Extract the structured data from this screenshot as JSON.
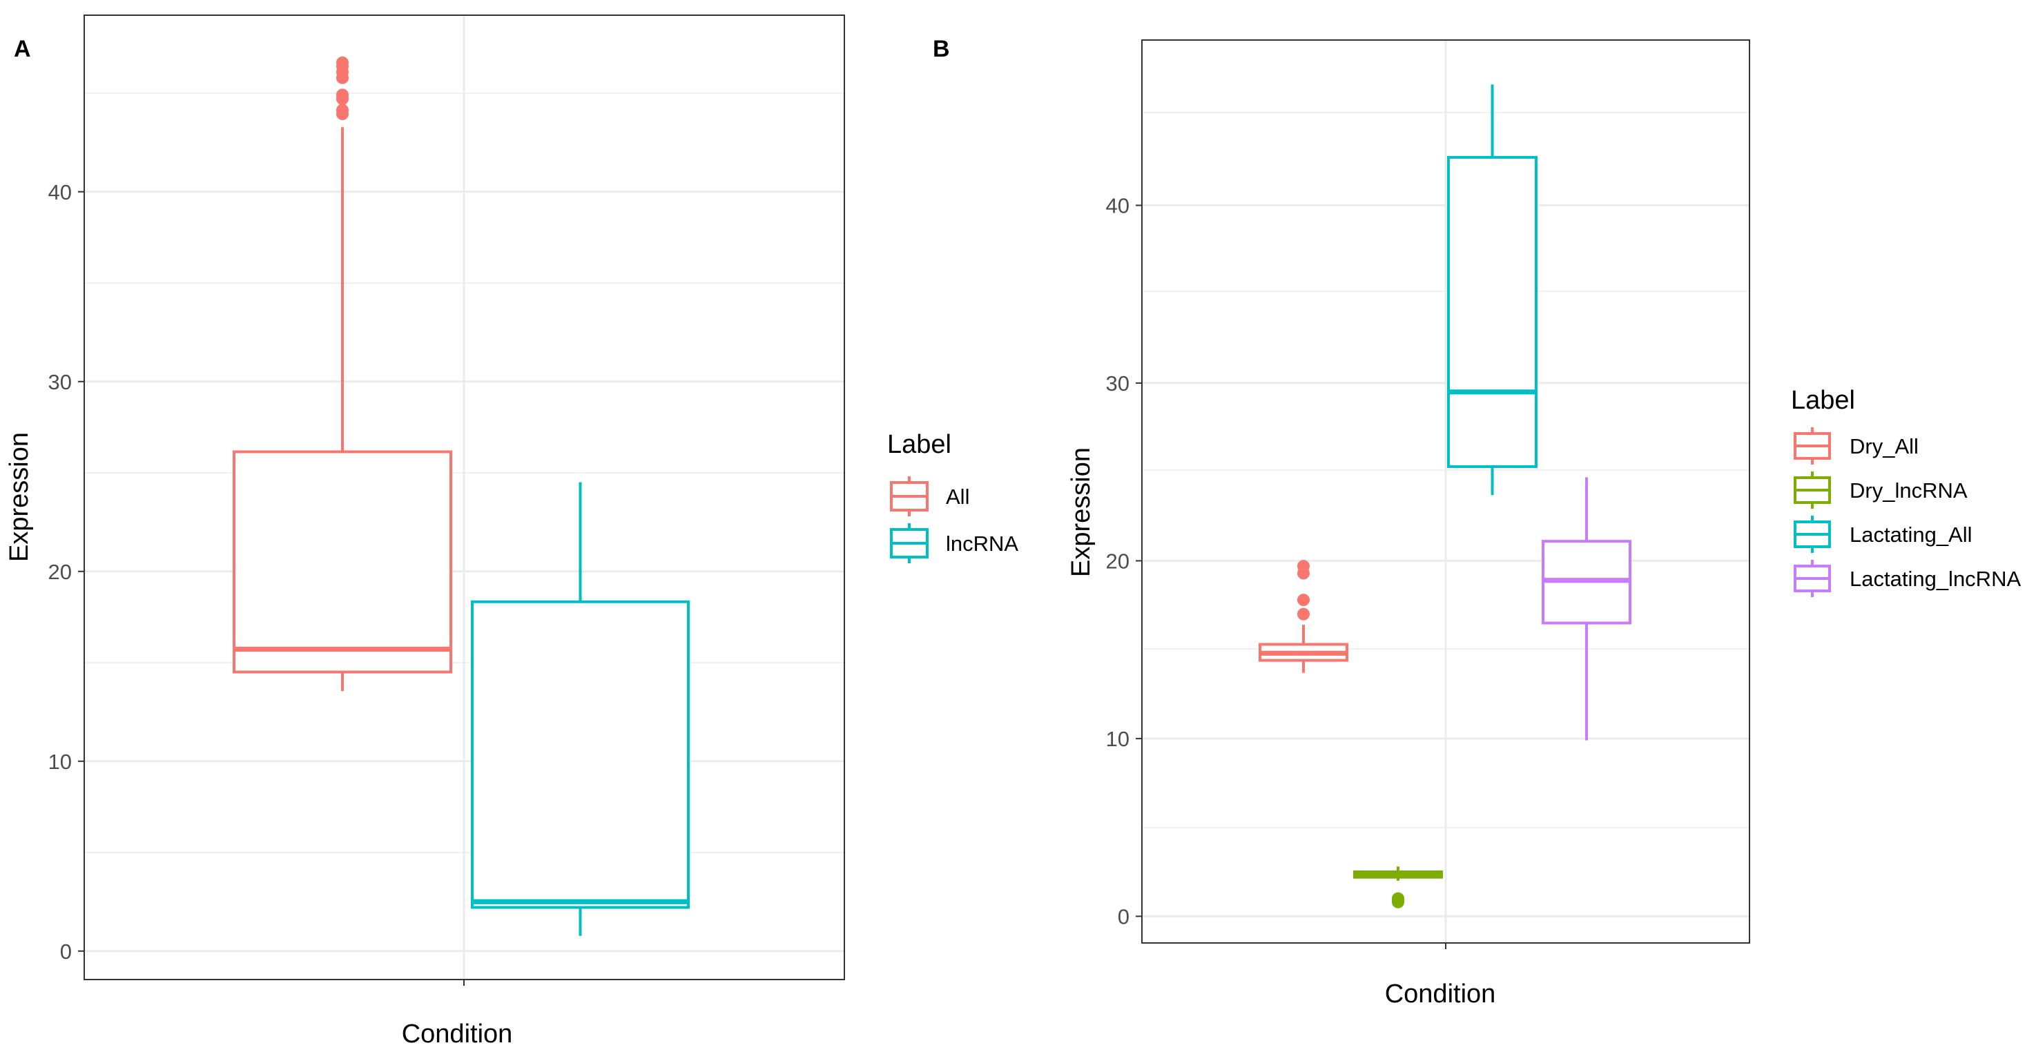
{
  "chart_data": [
    {
      "panel": "A",
      "type": "boxplot",
      "title": "",
      "xlabel": "Condition",
      "ylabel": "Expression",
      "ylim": [
        -1.5,
        49.3
      ],
      "yticks": [
        0,
        10,
        20,
        30,
        40
      ],
      "grid": true,
      "legend": {
        "title": "Label",
        "position": "right"
      },
      "series": [
        {
          "name": "All",
          "color": "#F8766D",
          "whisker_low": 13.7,
          "q1": 14.7,
          "median": 15.9,
          "q3": 26.3,
          "whisker_high": 43.4,
          "outliers": [
            44.1,
            44.3,
            44.9,
            45.1,
            46.0,
            46.3,
            46.6,
            46.8
          ]
        },
        {
          "name": "lncRNA",
          "color": "#00BFC4",
          "whisker_low": 0.8,
          "q1": 2.3,
          "median": 2.6,
          "q3": 18.4,
          "whisker_high": 24.7,
          "outliers": []
        }
      ]
    },
    {
      "panel": "B",
      "type": "boxplot",
      "title": "",
      "xlabel": "Condition",
      "ylabel": "Expression",
      "ylim": [
        -1.5,
        49.3
      ],
      "yticks": [
        0,
        10,
        20,
        30,
        40
      ],
      "grid": true,
      "legend": {
        "title": "Label",
        "position": "right"
      },
      "series": [
        {
          "name": "Dry_All",
          "color": "#F8766D",
          "whisker_low": 13.7,
          "q1": 14.4,
          "median": 14.8,
          "q3": 15.3,
          "whisker_high": 16.4,
          "outliers": [
            17.0,
            17.8,
            19.3,
            19.7
          ]
        },
        {
          "name": "Dry_lncRNA",
          "color": "#7CAE00",
          "whisker_low": 2.0,
          "q1": 2.2,
          "median": 2.35,
          "q3": 2.5,
          "whisker_high": 2.8,
          "outliers": [
            0.8,
            0.9,
            1.0
          ]
        },
        {
          "name": "Lactating_All",
          "color": "#00BFC4",
          "whisker_low": 23.7,
          "q1": 25.3,
          "median": 29.5,
          "q3": 42.7,
          "whisker_high": 46.8,
          "outliers": []
        },
        {
          "name": "Lactating_lncRNA",
          "color": "#C77CFF",
          "whisker_low": 9.9,
          "q1": 16.5,
          "median": 18.9,
          "q3": 21.1,
          "whisker_high": 24.7,
          "outliers": []
        }
      ]
    }
  ]
}
